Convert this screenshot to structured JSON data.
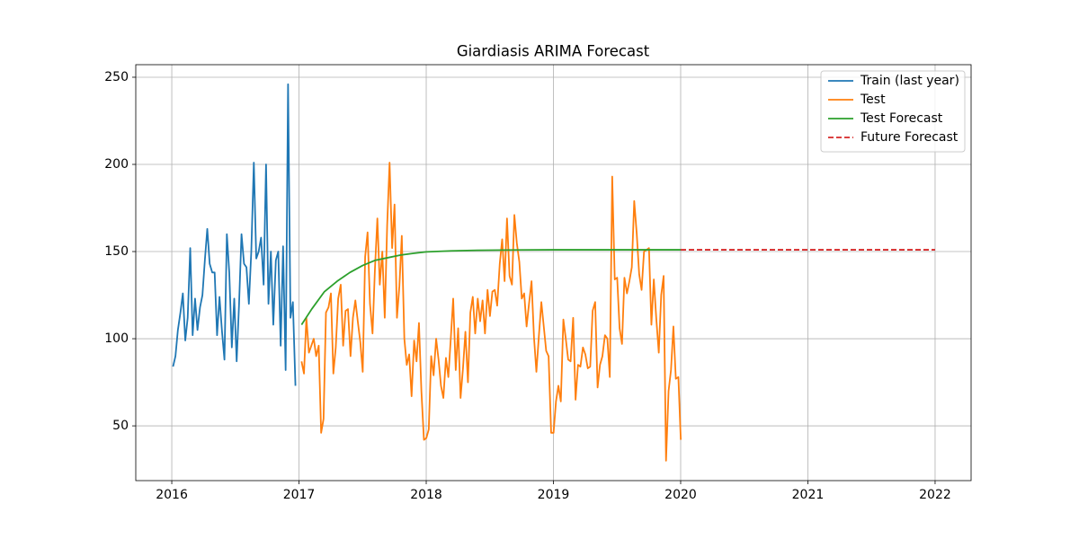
{
  "chart_data": {
    "type": "line",
    "title": "Giardiasis ARIMA Forecast",
    "xlim": [
      2015.717,
      2022.283
    ],
    "ylim": [
      18.6,
      257.2
    ],
    "xticks": [
      2016,
      2017,
      2018,
      2019,
      2020,
      2021,
      2022
    ],
    "yticks": [
      50,
      100,
      150,
      200,
      250
    ],
    "grid": true,
    "legend": "upper right",
    "series": [
      {
        "name": "Train (last year)",
        "color": "#1f77b4",
        "linestyle": "solid",
        "x": [
          2016.01,
          2016.029,
          2016.048,
          2016.068,
          2016.087,
          2016.106,
          2016.125,
          2016.145,
          2016.164,
          2016.183,
          2016.202,
          2016.222,
          2016.241,
          2016.26,
          2016.279,
          2016.298,
          2016.318,
          2016.337,
          2016.356,
          2016.375,
          2016.395,
          2016.414,
          2016.433,
          2016.452,
          2016.472,
          2016.491,
          2016.51,
          2016.529,
          2016.548,
          2016.568,
          2016.587,
          2016.606,
          2016.625,
          2016.645,
          2016.664,
          2016.683,
          2016.702,
          2016.722,
          2016.741,
          2016.76,
          2016.779,
          2016.798,
          2016.818,
          2016.837,
          2016.856,
          2016.875,
          2016.895,
          2016.914,
          2016.933,
          2016.952,
          2016.972
        ],
        "values": [
          84,
          90,
          105,
          115,
          126,
          99,
          112,
          152,
          102,
          123,
          105,
          118,
          125,
          145,
          163,
          143,
          138,
          138,
          102,
          124,
          104,
          88,
          160,
          138,
          95,
          123,
          87,
          120,
          160,
          143,
          141,
          120,
          150,
          201,
          146,
          150,
          158,
          131,
          200,
          120,
          150,
          108,
          145,
          150,
          96,
          153,
          82,
          246,
          112,
          121,
          73
        ]
      },
      {
        "name": "Test",
        "color": "#ff7f0e",
        "linestyle": "solid",
        "x": [
          2017.02,
          2017.039,
          2017.058,
          2017.078,
          2017.097,
          2017.116,
          2017.135,
          2017.155,
          2017.174,
          2017.193,
          2017.212,
          2017.232,
          2017.251,
          2017.27,
          2017.289,
          2017.308,
          2017.328,
          2017.347,
          2017.366,
          2017.385,
          2017.405,
          2017.424,
          2017.443,
          2017.462,
          2017.482,
          2017.501,
          2017.52,
          2017.539,
          2017.558,
          2017.578,
          2017.597,
          2017.616,
          2017.635,
          2017.655,
          2017.674,
          2017.693,
          2017.712,
          2017.732,
          2017.751,
          2017.77,
          2017.789,
          2017.808,
          2017.828,
          2017.847,
          2017.866,
          2017.885,
          2017.905,
          2017.924,
          2017.943,
          2017.962,
          2017.982,
          2018.001,
          2018.02,
          2018.039,
          2018.058,
          2018.078,
          2018.097,
          2018.116,
          2018.135,
          2018.155,
          2018.174,
          2018.193,
          2018.212,
          2018.232,
          2018.251,
          2018.27,
          2018.289,
          2018.308,
          2018.328,
          2018.347,
          2018.366,
          2018.385,
          2018.405,
          2018.424,
          2018.443,
          2018.462,
          2018.482,
          2018.501,
          2018.52,
          2018.539,
          2018.558,
          2018.578,
          2018.597,
          2018.616,
          2018.635,
          2018.655,
          2018.674,
          2018.693,
          2018.712,
          2018.732,
          2018.751,
          2018.77,
          2018.789,
          2018.808,
          2018.828,
          2018.847,
          2018.866,
          2018.885,
          2018.905,
          2018.924,
          2018.943,
          2018.962,
          2018.982,
          2019.001,
          2019.02,
          2019.039,
          2019.058,
          2019.078,
          2019.097,
          2019.116,
          2019.135,
          2019.155,
          2019.174,
          2019.193,
          2019.212,
          2019.232,
          2019.251,
          2019.27,
          2019.289,
          2019.308,
          2019.328,
          2019.347,
          2019.366,
          2019.385,
          2019.405,
          2019.424,
          2019.443,
          2019.462,
          2019.482,
          2019.501,
          2019.52,
          2019.539,
          2019.558,
          2019.578,
          2019.597,
          2019.616,
          2019.635,
          2019.655,
          2019.674,
          2019.693,
          2019.712,
          2019.732,
          2019.751,
          2019.77,
          2019.789,
          2019.808,
          2019.828,
          2019.847,
          2019.866,
          2019.885,
          2019.905,
          2019.924,
          2019.943,
          2019.962,
          2019.982,
          2020.001
        ],
        "values": [
          87,
          80,
          112,
          92,
          96,
          100,
          90,
          96,
          46,
          54,
          115,
          118,
          126,
          80,
          95,
          123,
          131,
          96,
          116,
          117,
          90,
          112,
          122,
          110,
          98,
          81,
          147,
          161,
          120,
          103,
          140,
          169,
          131,
          150,
          112,
          165,
          201,
          152,
          177,
          112,
          130,
          159,
          100,
          85,
          91,
          67,
          99,
          87,
          109,
          70,
          42,
          43,
          48,
          90,
          79,
          100,
          88,
          73,
          66,
          89,
          78,
          100,
          123,
          82,
          106,
          66,
          83,
          104,
          75,
          115,
          124,
          103,
          123,
          110,
          122,
          103,
          128,
          113,
          127,
          128,
          119,
          143,
          157,
          133,
          169,
          136,
          131,
          171,
          155,
          144,
          123,
          126,
          107,
          120,
          133,
          101,
          81,
          101,
          121,
          107,
          93,
          90,
          46,
          46,
          64,
          73,
          64,
          111,
          100,
          88,
          87,
          112,
          65,
          85,
          84,
          95,
          91,
          83,
          84,
          116,
          121,
          72,
          85,
          90,
          102,
          100,
          78,
          193,
          134,
          135,
          106,
          97,
          135,
          126,
          133,
          141,
          179,
          160,
          137,
          128,
          150,
          151,
          152,
          108,
          134,
          112,
          92,
          125,
          136,
          30,
          70,
          82,
          107,
          77,
          78,
          42
        ]
      },
      {
        "name": "Test Forecast",
        "color": "#2ca02c",
        "linestyle": "solid",
        "x": [
          2017.02,
          2017.1,
          2017.2,
          2017.3,
          2017.4,
          2017.5,
          2017.6,
          2017.7,
          2017.8,
          2017.9,
          2018.0,
          2018.2,
          2018.4,
          2018.7,
          2019.0,
          2020.0
        ],
        "values": [
          108,
          117,
          127,
          133,
          138,
          142,
          145,
          146.5,
          148,
          149,
          149.8,
          150.4,
          150.7,
          150.9,
          151,
          151
        ]
      },
      {
        "name": "Future Forecast",
        "color": "#d62728",
        "linestyle": "dashed",
        "x": [
          2020.0,
          2022.0
        ],
        "values": [
          151,
          151
        ]
      }
    ]
  }
}
